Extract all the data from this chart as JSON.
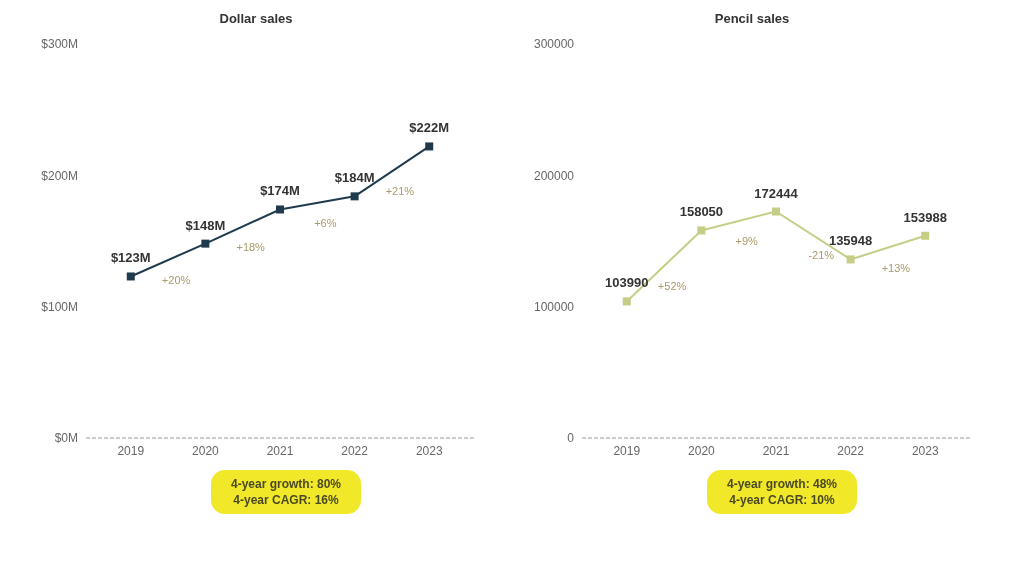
{
  "chart_data": [
    {
      "type": "line",
      "title": "Dollar sales",
      "categories": [
        "2019",
        "2020",
        "2021",
        "2022",
        "2023"
      ],
      "series": [
        {
          "color": "#1f3a4d",
          "values": [
            123,
            148,
            174,
            184,
            222
          ],
          "value_labels": [
            "$123M",
            "$148M",
            "$174M",
            "$184M",
            "$222M"
          ]
        }
      ],
      "ylim": [
        0,
        300
      ],
      "yticks": [
        {
          "value": 0,
          "label": "$0M"
        },
        {
          "value": 100,
          "label": "$100M"
        },
        {
          "value": 200,
          "label": "$200M"
        },
        {
          "value": 300,
          "label": "$300M"
        }
      ],
      "grid": false,
      "legend": false,
      "marker": "square",
      "line_style": "solid",
      "annotations": [
        "+20%",
        "+18%",
        "+6%",
        "+21%",
        "4-year growth: 80%\n4-year CAGR: 16%"
      ]
    },
    {
      "type": "line",
      "title": "Pencil sales",
      "categories": [
        "2019",
        "2020",
        "2021",
        "2022",
        "2023"
      ],
      "series": [
        {
          "color": "#c5cd86",
          "values": [
            103990,
            158050,
            172444,
            135948,
            153988
          ]
        }
      ],
      "data_labels": true,
      "ylim": [
        0,
        300000
      ],
      "yticks": [
        0,
        100000,
        200000,
        300000
      ],
      "grid": false,
      "legend": false,
      "marker": "square",
      "line_style": "solid",
      "annotations": [
        "+52%",
        "+9%",
        "-21%",
        "+13%",
        "4-year growth: 48%\n4-year CAGR: 10%"
      ]
    }
  ]
}
